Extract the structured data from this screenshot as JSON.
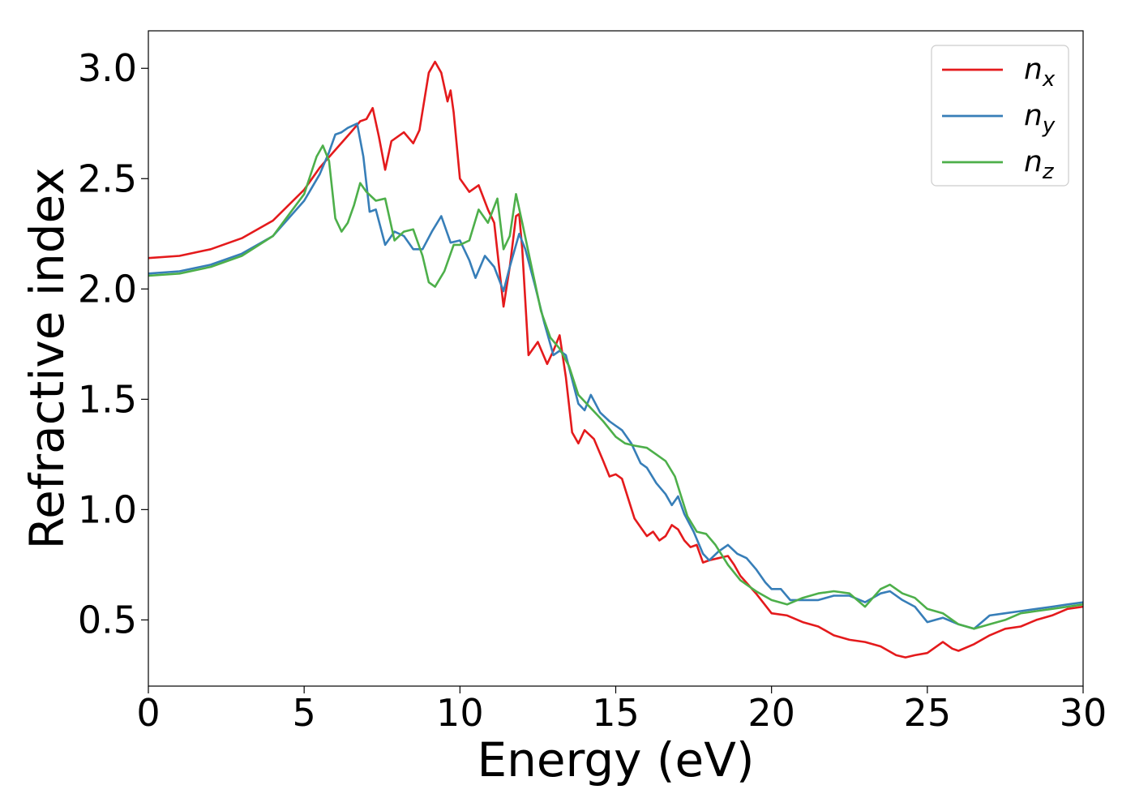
{
  "colors": {
    "n_x": "#e41a1c",
    "n_y": "#377eb8",
    "n_z": "#4daf4a"
  },
  "chart_data": {
    "type": "line",
    "title": "",
    "xlabel": "Energy (eV)",
    "ylabel": "Refractive index",
    "xlim": [
      0,
      30
    ],
    "ylim": [
      0.2,
      3.17
    ],
    "xticks": [
      0,
      5,
      10,
      15,
      20,
      25,
      30
    ],
    "xtick_labels": [
      "0",
      "5",
      "10",
      "15",
      "20",
      "25",
      "30"
    ],
    "yticks": [
      0.5,
      1.0,
      1.5,
      2.0,
      2.5,
      3.0
    ],
    "ytick_labels": [
      "0.5",
      "1.0",
      "1.5",
      "2.0",
      "2.5",
      "3.0"
    ],
    "grid": false,
    "legend_position": "top-right",
    "series": [
      {
        "name": "n_x",
        "base": "n",
        "sub": "x",
        "color_key": "n_x",
        "points": [
          [
            0,
            2.14
          ],
          [
            1,
            2.15
          ],
          [
            2,
            2.18
          ],
          [
            3,
            2.23
          ],
          [
            4,
            2.31
          ],
          [
            5,
            2.45
          ],
          [
            5.5,
            2.55
          ],
          [
            6,
            2.63
          ],
          [
            6.5,
            2.71
          ],
          [
            6.8,
            2.76
          ],
          [
            7.0,
            2.77
          ],
          [
            7.2,
            2.82
          ],
          [
            7.4,
            2.69
          ],
          [
            7.6,
            2.54
          ],
          [
            7.8,
            2.67
          ],
          [
            8.2,
            2.71
          ],
          [
            8.5,
            2.66
          ],
          [
            8.7,
            2.72
          ],
          [
            9.0,
            2.98
          ],
          [
            9.2,
            3.03
          ],
          [
            9.4,
            2.98
          ],
          [
            9.6,
            2.85
          ],
          [
            9.7,
            2.9
          ],
          [
            9.8,
            2.8
          ],
          [
            10.0,
            2.5
          ],
          [
            10.3,
            2.44
          ],
          [
            10.6,
            2.47
          ],
          [
            10.9,
            2.36
          ],
          [
            11.1,
            2.3
          ],
          [
            11.4,
            1.92
          ],
          [
            11.6,
            2.1
          ],
          [
            11.8,
            2.33
          ],
          [
            11.9,
            2.34
          ],
          [
            12.0,
            2.18
          ],
          [
            12.2,
            1.7
          ],
          [
            12.5,
            1.76
          ],
          [
            12.8,
            1.66
          ],
          [
            13.0,
            1.72
          ],
          [
            13.2,
            1.79
          ],
          [
            13.4,
            1.6
          ],
          [
            13.6,
            1.35
          ],
          [
            13.8,
            1.3
          ],
          [
            14.0,
            1.36
          ],
          [
            14.3,
            1.32
          ],
          [
            14.6,
            1.22
          ],
          [
            14.8,
            1.15
          ],
          [
            15.0,
            1.16
          ],
          [
            15.2,
            1.14
          ],
          [
            15.4,
            1.05
          ],
          [
            15.6,
            0.96
          ],
          [
            15.8,
            0.92
          ],
          [
            16.0,
            0.88
          ],
          [
            16.2,
            0.9
          ],
          [
            16.4,
            0.86
          ],
          [
            16.6,
            0.88
          ],
          [
            16.8,
            0.93
          ],
          [
            17.0,
            0.91
          ],
          [
            17.2,
            0.86
          ],
          [
            17.4,
            0.83
          ],
          [
            17.6,
            0.84
          ],
          [
            17.8,
            0.76
          ],
          [
            18.0,
            0.77
          ],
          [
            18.3,
            0.78
          ],
          [
            18.6,
            0.79
          ],
          [
            18.8,
            0.75
          ],
          [
            19.0,
            0.7
          ],
          [
            19.5,
            0.62
          ],
          [
            20.0,
            0.53
          ],
          [
            20.5,
            0.52
          ],
          [
            21.0,
            0.49
          ],
          [
            21.5,
            0.47
          ],
          [
            22.0,
            0.43
          ],
          [
            22.5,
            0.41
          ],
          [
            23.0,
            0.4
          ],
          [
            23.5,
            0.38
          ],
          [
            24.0,
            0.34
          ],
          [
            24.3,
            0.33
          ],
          [
            24.6,
            0.34
          ],
          [
            25.0,
            0.35
          ],
          [
            25.5,
            0.4
          ],
          [
            25.8,
            0.37
          ],
          [
            26.0,
            0.36
          ],
          [
            26.5,
            0.39
          ],
          [
            27.0,
            0.43
          ],
          [
            27.5,
            0.46
          ],
          [
            28.0,
            0.47
          ],
          [
            28.5,
            0.5
          ],
          [
            29.0,
            0.52
          ],
          [
            29.5,
            0.55
          ],
          [
            30.0,
            0.56
          ]
        ]
      },
      {
        "name": "n_y",
        "base": "n",
        "sub": "y",
        "color_key": "n_y",
        "points": [
          [
            0,
            2.07
          ],
          [
            1,
            2.08
          ],
          [
            2,
            2.11
          ],
          [
            3,
            2.16
          ],
          [
            4,
            2.24
          ],
          [
            5,
            2.4
          ],
          [
            5.5,
            2.52
          ],
          [
            5.8,
            2.62
          ],
          [
            6.0,
            2.7
          ],
          [
            6.2,
            2.71
          ],
          [
            6.4,
            2.73
          ],
          [
            6.7,
            2.75
          ],
          [
            6.9,
            2.6
          ],
          [
            7.1,
            2.35
          ],
          [
            7.3,
            2.36
          ],
          [
            7.6,
            2.2
          ],
          [
            7.9,
            2.26
          ],
          [
            8.2,
            2.24
          ],
          [
            8.5,
            2.18
          ],
          [
            8.8,
            2.18
          ],
          [
            9.1,
            2.26
          ],
          [
            9.4,
            2.33
          ],
          [
            9.7,
            2.21
          ],
          [
            10.0,
            2.22
          ],
          [
            10.3,
            2.13
          ],
          [
            10.5,
            2.05
          ],
          [
            10.8,
            2.15
          ],
          [
            11.1,
            2.1
          ],
          [
            11.4,
            1.99
          ],
          [
            11.6,
            2.1
          ],
          [
            11.9,
            2.25
          ],
          [
            12.1,
            2.18
          ],
          [
            12.4,
            2.02
          ],
          [
            12.7,
            1.85
          ],
          [
            13.0,
            1.7
          ],
          [
            13.2,
            1.72
          ],
          [
            13.4,
            1.7
          ],
          [
            13.8,
            1.48
          ],
          [
            14.0,
            1.45
          ],
          [
            14.2,
            1.52
          ],
          [
            14.5,
            1.44
          ],
          [
            14.8,
            1.4
          ],
          [
            15.0,
            1.38
          ],
          [
            15.2,
            1.36
          ],
          [
            15.5,
            1.3
          ],
          [
            15.8,
            1.21
          ],
          [
            16.0,
            1.19
          ],
          [
            16.3,
            1.12
          ],
          [
            16.6,
            1.07
          ],
          [
            16.8,
            1.02
          ],
          [
            17.0,
            1.06
          ],
          [
            17.2,
            0.98
          ],
          [
            17.5,
            0.9
          ],
          [
            17.8,
            0.8
          ],
          [
            18.0,
            0.77
          ],
          [
            18.3,
            0.81
          ],
          [
            18.6,
            0.84
          ],
          [
            18.9,
            0.8
          ],
          [
            19.2,
            0.78
          ],
          [
            19.5,
            0.73
          ],
          [
            19.8,
            0.67
          ],
          [
            20.0,
            0.64
          ],
          [
            20.3,
            0.64
          ],
          [
            20.6,
            0.59
          ],
          [
            21.0,
            0.59
          ],
          [
            21.5,
            0.59
          ],
          [
            22.0,
            0.61
          ],
          [
            22.5,
            0.61
          ],
          [
            23.0,
            0.58
          ],
          [
            23.5,
            0.62
          ],
          [
            23.8,
            0.63
          ],
          [
            24.2,
            0.59
          ],
          [
            24.6,
            0.56
          ],
          [
            25.0,
            0.49
          ],
          [
            25.5,
            0.51
          ],
          [
            26.0,
            0.48
          ],
          [
            26.5,
            0.46
          ],
          [
            27.0,
            0.52
          ],
          [
            27.5,
            0.53
          ],
          [
            28.0,
            0.54
          ],
          [
            28.5,
            0.55
          ],
          [
            29.0,
            0.56
          ],
          [
            29.5,
            0.57
          ],
          [
            30.0,
            0.58
          ]
        ]
      },
      {
        "name": "n_z",
        "base": "n",
        "sub": "z",
        "color_key": "n_z",
        "points": [
          [
            0,
            2.06
          ],
          [
            1,
            2.07
          ],
          [
            2,
            2.1
          ],
          [
            3,
            2.15
          ],
          [
            4,
            2.24
          ],
          [
            5,
            2.43
          ],
          [
            5.4,
            2.6
          ],
          [
            5.6,
            2.65
          ],
          [
            5.8,
            2.58
          ],
          [
            6.0,
            2.32
          ],
          [
            6.2,
            2.26
          ],
          [
            6.4,
            2.3
          ],
          [
            6.6,
            2.38
          ],
          [
            6.8,
            2.48
          ],
          [
            7.0,
            2.44
          ],
          [
            7.3,
            2.4
          ],
          [
            7.6,
            2.41
          ],
          [
            7.9,
            2.22
          ],
          [
            8.2,
            2.26
          ],
          [
            8.5,
            2.27
          ],
          [
            8.8,
            2.15
          ],
          [
            9.0,
            2.03
          ],
          [
            9.2,
            2.01
          ],
          [
            9.5,
            2.08
          ],
          [
            9.8,
            2.2
          ],
          [
            10.0,
            2.2
          ],
          [
            10.3,
            2.22
          ],
          [
            10.6,
            2.36
          ],
          [
            10.9,
            2.3
          ],
          [
            11.2,
            2.41
          ],
          [
            11.4,
            2.18
          ],
          [
            11.6,
            2.24
          ],
          [
            11.8,
            2.43
          ],
          [
            12.0,
            2.3
          ],
          [
            12.3,
            2.1
          ],
          [
            12.6,
            1.9
          ],
          [
            12.9,
            1.78
          ],
          [
            13.2,
            1.73
          ],
          [
            13.5,
            1.65
          ],
          [
            13.8,
            1.52
          ],
          [
            14.2,
            1.46
          ],
          [
            14.6,
            1.4
          ],
          [
            15.0,
            1.33
          ],
          [
            15.3,
            1.3
          ],
          [
            15.6,
            1.29
          ],
          [
            16.0,
            1.28
          ],
          [
            16.3,
            1.25
          ],
          [
            16.6,
            1.22
          ],
          [
            16.9,
            1.15
          ],
          [
            17.1,
            1.06
          ],
          [
            17.3,
            0.97
          ],
          [
            17.6,
            0.9
          ],
          [
            17.9,
            0.89
          ],
          [
            18.2,
            0.84
          ],
          [
            18.6,
            0.75
          ],
          [
            19.0,
            0.68
          ],
          [
            19.5,
            0.63
          ],
          [
            20.0,
            0.59
          ],
          [
            20.5,
            0.57
          ],
          [
            21.0,
            0.6
          ],
          [
            21.5,
            0.62
          ],
          [
            22.0,
            0.63
          ],
          [
            22.5,
            0.62
          ],
          [
            23.0,
            0.56
          ],
          [
            23.5,
            0.64
          ],
          [
            23.8,
            0.66
          ],
          [
            24.2,
            0.62
          ],
          [
            24.6,
            0.6
          ],
          [
            25.0,
            0.55
          ],
          [
            25.5,
            0.53
          ],
          [
            26.0,
            0.48
          ],
          [
            26.5,
            0.46
          ],
          [
            27.0,
            0.48
          ],
          [
            27.5,
            0.5
          ],
          [
            28.0,
            0.53
          ],
          [
            28.5,
            0.54
          ],
          [
            29.0,
            0.55
          ],
          [
            29.5,
            0.56
          ],
          [
            30.0,
            0.57
          ]
        ]
      }
    ]
  }
}
